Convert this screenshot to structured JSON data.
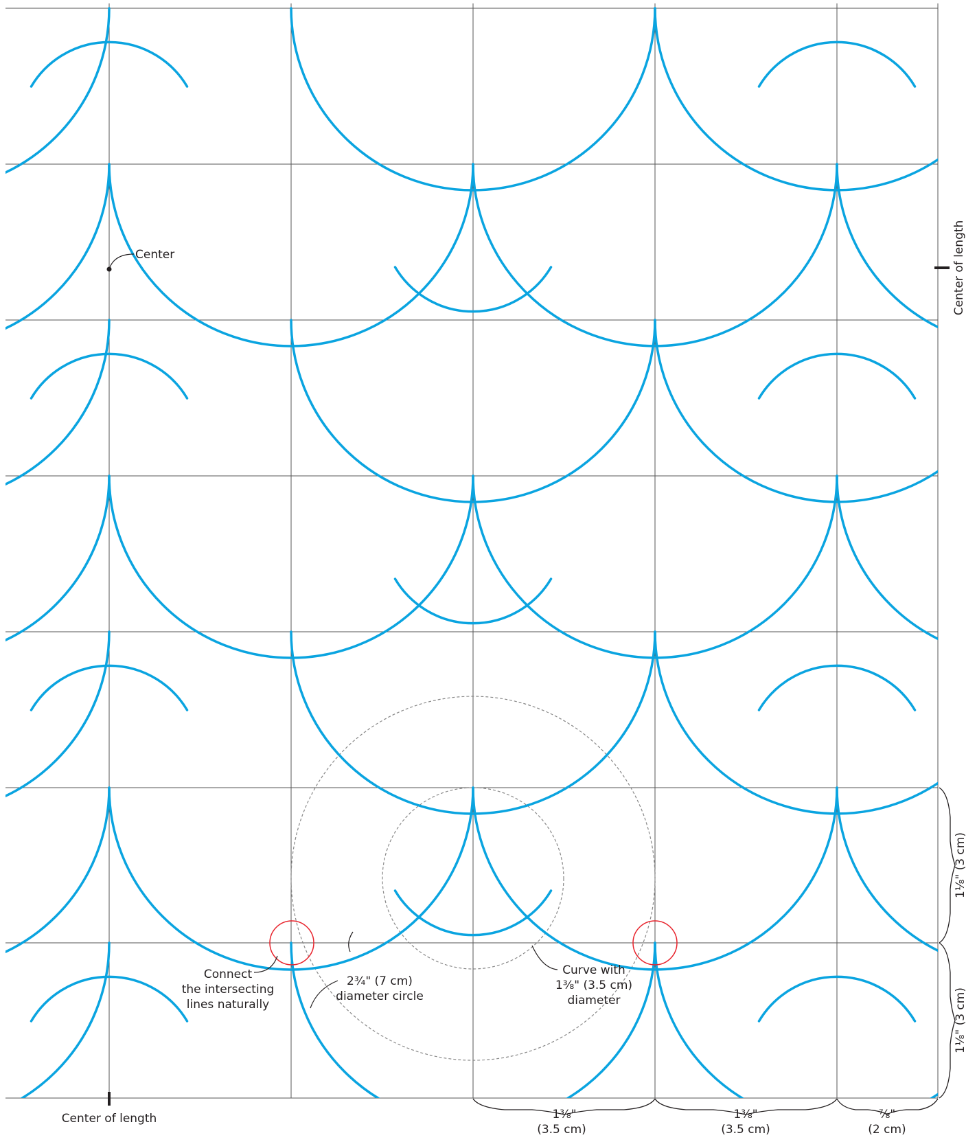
{
  "annotations": {
    "center": "Center",
    "connect_line1": "Connect",
    "connect_line2": "the intersecting",
    "connect_line3": "lines naturally",
    "circle_line1": "2¾\" (7 cm)",
    "circle_line2": "diameter circle",
    "curve_line1": "Curve with",
    "curve_line2": "1⅜\" (3.5 cm)",
    "curve_line3": "diameter",
    "center_of_length_bottom": "Center of length",
    "center_of_length_right": "Center of length"
  },
  "dimensions": {
    "horizontal": [
      {
        "line1": "1⅜\"",
        "line2": "(3.5 cm)"
      },
      {
        "line1": "1⅜\"",
        "line2": "(3.5 cm)"
      },
      {
        "line1": "⅞\"",
        "line2": "(2 cm)"
      }
    ],
    "vertical": [
      {
        "label": "1⅛\" (3 cm)"
      },
      {
        "label": "1⅛\" (3 cm)"
      }
    ]
  },
  "colors": {
    "pattern": "#0aa4e0",
    "grid": "#555555",
    "guide": "#888888",
    "highlight": "#e8222b",
    "text": "#231f20"
  }
}
